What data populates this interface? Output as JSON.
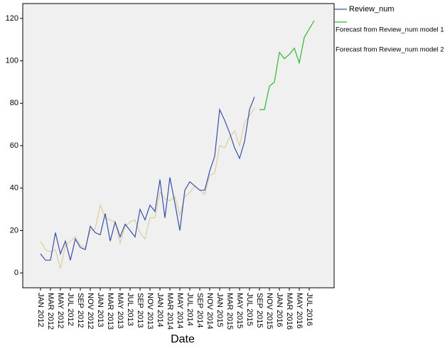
{
  "chart_data": {
    "type": "line",
    "xlabel": "Date",
    "categories": [
      "JAN 2012",
      null,
      "MAR 2012",
      null,
      "MAY 2012",
      null,
      "JUL 2012",
      null,
      "SEP 2012",
      null,
      "NOV 2012",
      null,
      "JAN 2013",
      null,
      "MAR 2013",
      null,
      "MAY 2013",
      null,
      "JUL 2013",
      null,
      "SEP 2013",
      null,
      "NOV 2013",
      null,
      "JAN 2014",
      null,
      "MAR 2014",
      null,
      "MAY 2014",
      null,
      "JUL 2014",
      null,
      "SEP 2014",
      null,
      "NOV 2014",
      null,
      "JAN 2015",
      null,
      "MAR 2015",
      null,
      "MAY 2015",
      null,
      "JUL 2015",
      null,
      "SEP 2015",
      null,
      "NOV 2015",
      null,
      "JAN 2016",
      null,
      "MAR 2016",
      null,
      "MAY 2016",
      null,
      "JUL 2016",
      null
    ],
    "series": [
      {
        "name": "Review_num",
        "color": "#3a4fa8",
        "values": [
          9,
          6,
          6,
          19,
          9,
          15,
          6,
          16,
          12,
          11,
          22,
          19,
          18,
          28,
          15,
          24,
          17,
          23,
          20,
          17,
          30,
          25,
          32,
          29,
          44,
          26,
          45,
          33,
          20,
          39,
          43,
          41,
          39,
          39,
          48,
          55,
          77,
          72,
          66,
          59,
          54,
          62,
          77,
          83,
          null,
          null,
          null,
          null,
          null,
          null,
          null,
          null,
          null,
          null,
          null,
          null
        ]
      },
      {
        "name": "Forecast from Review_num model 1",
        "color": "#2eb82e",
        "values": [
          null,
          null,
          null,
          null,
          null,
          null,
          null,
          null,
          null,
          null,
          null,
          null,
          null,
          null,
          null,
          null,
          null,
          null,
          null,
          null,
          null,
          null,
          null,
          null,
          null,
          null,
          null,
          null,
          null,
          null,
          null,
          null,
          null,
          null,
          null,
          null,
          null,
          null,
          null,
          null,
          null,
          null,
          null,
          null,
          77,
          77,
          88,
          90,
          104,
          101,
          103,
          106,
          99,
          111,
          115,
          119
        ]
      },
      {
        "name": "Forecast from Review_num model 2",
        "color": "#d8cf9e",
        "values": [
          15,
          11,
          10,
          11,
          2,
          13,
          15,
          17,
          13,
          12,
          20,
          21,
          32,
          26,
          25,
          24,
          14,
          22,
          24,
          25,
          19,
          16,
          26,
          26,
          38,
          35,
          34,
          36,
          27,
          36,
          38,
          41,
          39,
          37,
          46,
          47,
          60,
          59,
          64,
          67,
          60,
          71,
          74,
          78,
          null,
          null,
          null,
          null,
          null,
          null,
          null,
          null,
          null,
          null,
          null,
          null
        ]
      }
    ],
    "ylim": [
      -7,
      127
    ],
    "yticks": [
      0,
      20,
      40,
      60,
      80,
      100,
      120
    ]
  }
}
